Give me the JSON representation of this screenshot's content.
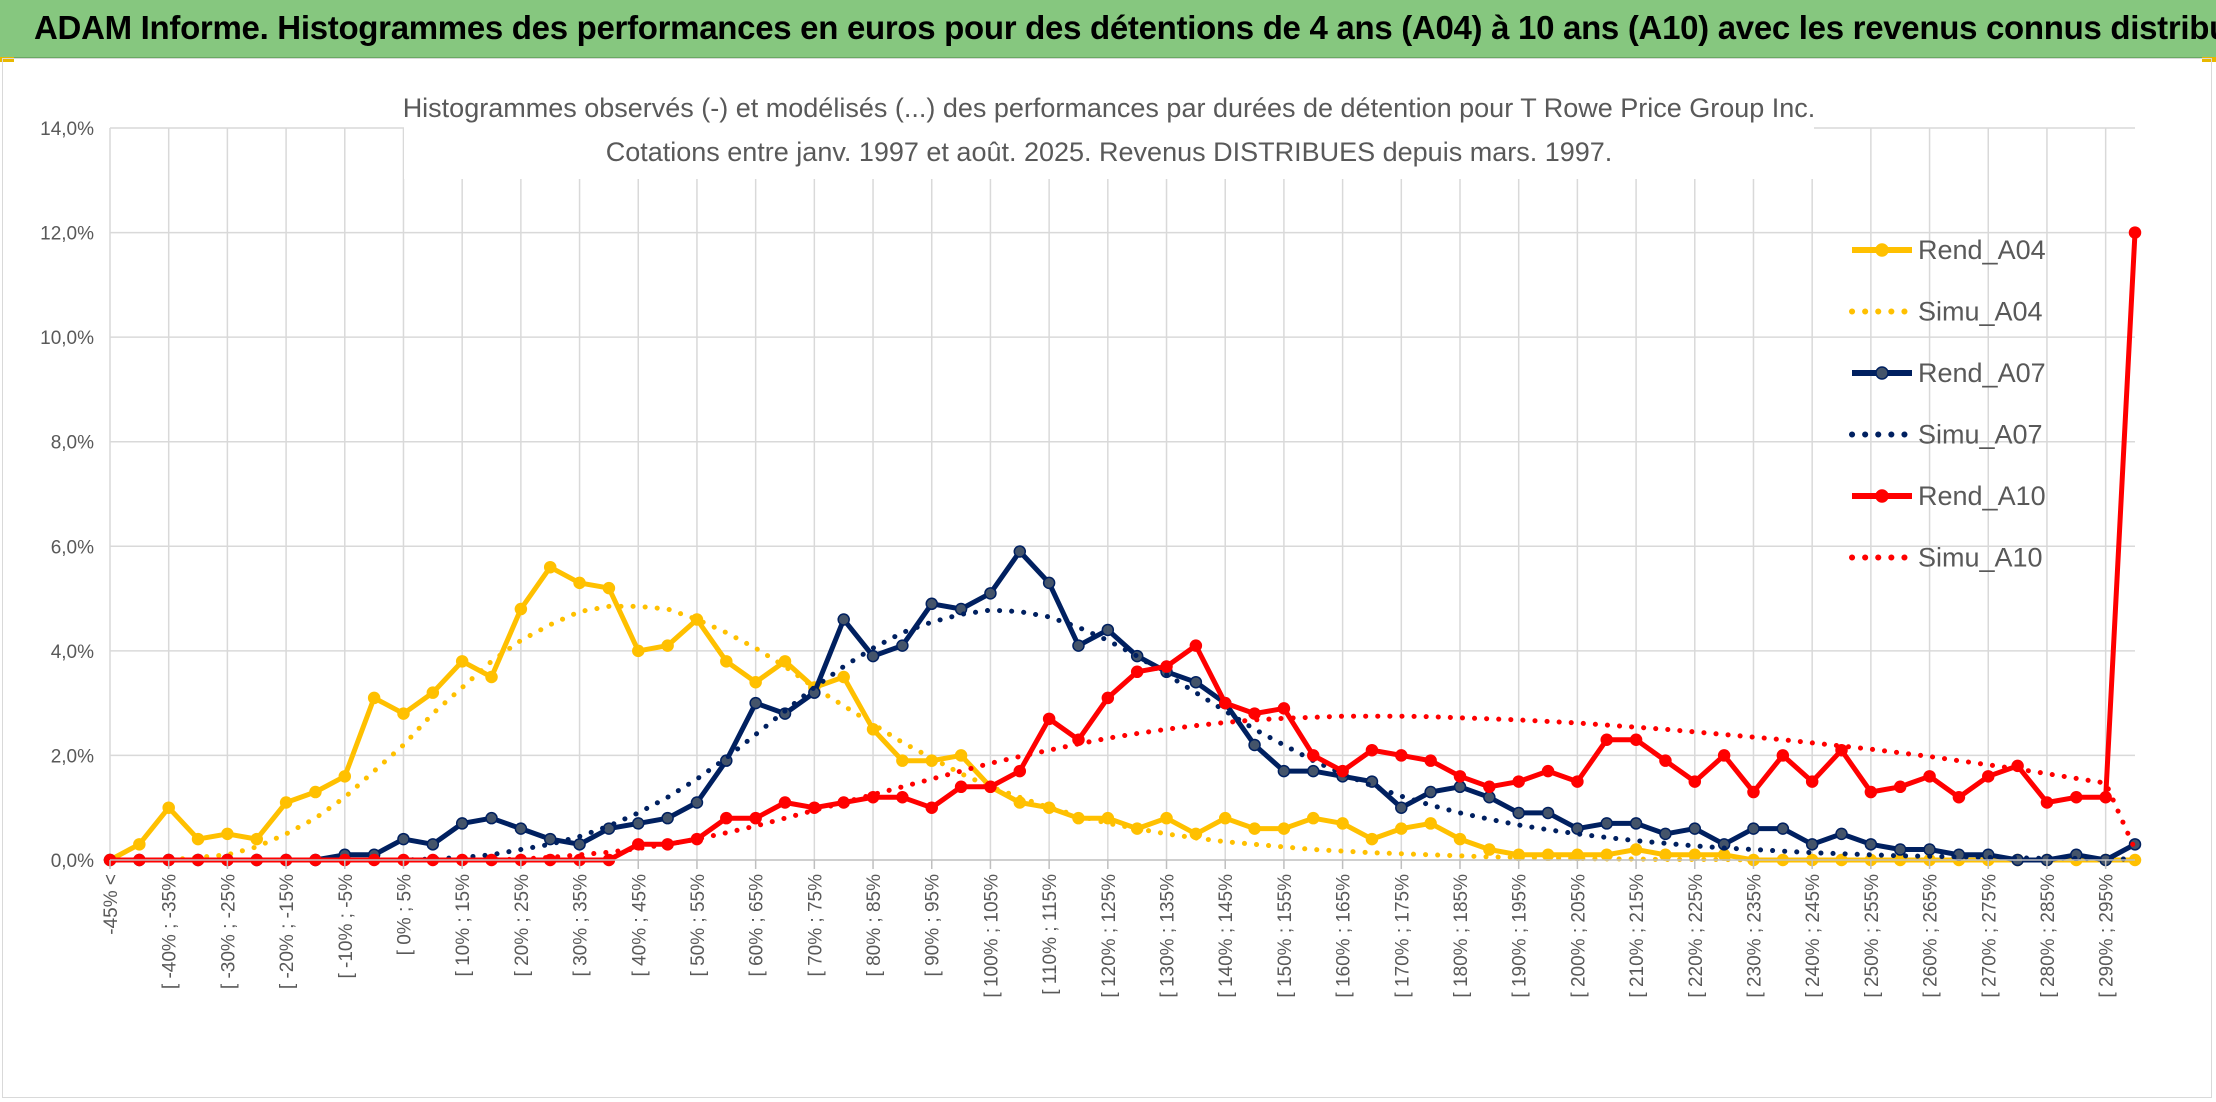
{
  "banner": {
    "title": "ADAM Informe. Histogrammes des performances en euros pour des détentions de 4 ans (A04) à 10 ans (A10) avec les revenus connus distribués",
    "color": "#86c77f"
  },
  "chart_data": {
    "type": "line",
    "title_lines": [
      "Histogrammes observés (-) et modélisés (...) des performances par durées de détention pour T Rowe Price Group Inc.",
      "Cotations entre janv. 1997 et août. 2025. Revenus DISTRIBUES depuis mars. 1997."
    ],
    "xlabel": "",
    "ylabel": "",
    "ylim": [
      0,
      14
    ],
    "y_ticks": [
      "0,0%",
      "2,0%",
      "4,0%",
      "6,0%",
      "8,0%",
      "10,0%",
      "12,0%",
      "14,0%"
    ],
    "grid": true,
    "legend_position": "right",
    "x_labels": [
      "-45% <",
      "[ -40% ; -35%",
      "[ -30% ; -25%",
      "[ -20% ; -15%",
      "[ -10% ; -5%",
      "[ 0% ; 5%",
      "[ 10% ; 15%",
      "[ 20% ; 25%",
      "[ 30% ; 35%",
      "[ 40% ; 45%",
      "[ 50% ; 55%",
      "[ 60% ; 65%",
      "[ 70% ; 75%",
      "[ 80% ; 85%",
      "[ 90% ; 95%",
      "[ 100% ; 105%",
      "[ 110% ; 115%",
      "[ 120% ; 125%",
      "[ 130% ; 135%",
      "[ 140% ; 145%",
      "[ 150% ; 155%",
      "[ 160% ; 165%",
      "[ 170% ; 175%",
      "[ 180% ; 185%",
      "[ 190% ; 195%",
      "[ 200% ; 205%",
      "[ 210% ; 215%",
      "[ 220% ; 225%",
      "[ 230% ; 235%",
      "[ 240% ; 245%",
      "[ 250% ; 255%",
      "[ 260% ; 265%",
      "[ 270% ; 275%",
      "[ 280% ; 285%",
      "[ 290% ; 295%"
    ],
    "series": [
      {
        "name": "Rend_A04",
        "style": "solid",
        "color": "#ffc000",
        "values": [
          0,
          0.3,
          1.0,
          0.4,
          0.5,
          0.4,
          1.1,
          1.3,
          1.6,
          3.1,
          2.8,
          3.2,
          3.8,
          3.5,
          4.8,
          5.6,
          5.3,
          5.2,
          4.0,
          4.1,
          4.6,
          3.8,
          3.4,
          3.8,
          3.3,
          3.5,
          2.5,
          1.9,
          1.9,
          2.0,
          1.4,
          1.1,
          1.0,
          0.8,
          0.8,
          0.6,
          0.8,
          0.5,
          0.8,
          0.6,
          0.6,
          0.8,
          0.7,
          0.4,
          0.6,
          0.7,
          0.4,
          0.2,
          0.1,
          0.1,
          0.1,
          0.1,
          0.2,
          0.1,
          0.1,
          0.1,
          0.0,
          0.0,
          0.0,
          0.0,
          0.0,
          0.0,
          0.0,
          0.0,
          0.0,
          0.0,
          0.0,
          0.0,
          0.0,
          0.0
        ]
      },
      {
        "name": "Simu_A04",
        "style": "dotted",
        "color": "#ffc000",
        "values": [
          0,
          0,
          0,
          0.05,
          0.1,
          0.25,
          0.5,
          0.8,
          1.2,
          1.7,
          2.2,
          2.8,
          3.3,
          3.8,
          4.2,
          4.5,
          4.75,
          4.85,
          4.85,
          4.8,
          4.6,
          4.35,
          4.05,
          3.7,
          3.3,
          2.95,
          2.6,
          2.25,
          1.95,
          1.65,
          1.4,
          1.2,
          1.0,
          0.85,
          0.7,
          0.6,
          0.5,
          0.42,
          0.35,
          0.3,
          0.25,
          0.2,
          0.17,
          0.14,
          0.12,
          0.1,
          0.08,
          0.06,
          0.05,
          0.04,
          0.03,
          0.02,
          0.02,
          0.01,
          0.01,
          0.01,
          0,
          0,
          0,
          0,
          0,
          0,
          0,
          0,
          0,
          0,
          0,
          0,
          0,
          0
        ]
      },
      {
        "name": "Rend_A07",
        "style": "solid",
        "color": "#002060",
        "values": [
          0,
          0,
          0,
          0,
          0,
          0,
          0,
          0,
          0.1,
          0.1,
          0.4,
          0.3,
          0.7,
          0.8,
          0.6,
          0.4,
          0.3,
          0.6,
          0.7,
          0.8,
          1.1,
          1.9,
          3.0,
          2.8,
          3.2,
          4.6,
          3.9,
          4.1,
          4.9,
          4.8,
          5.1,
          5.9,
          5.3,
          4.1,
          4.4,
          3.9,
          3.6,
          3.4,
          3.0,
          2.2,
          1.7,
          1.7,
          1.6,
          1.5,
          1.0,
          1.3,
          1.4,
          1.2,
          0.9,
          0.9,
          0.6,
          0.7,
          0.7,
          0.5,
          0.6,
          0.3,
          0.6,
          0.6,
          0.3,
          0.5,
          0.3,
          0.2,
          0.2,
          0.1,
          0.1,
          0.0,
          0.0,
          0.1,
          0.0,
          0.3
        ]
      },
      {
        "name": "Simu_A07",
        "style": "dotted",
        "color": "#002060",
        "values": [
          0,
          0,
          0,
          0,
          0,
          0,
          0,
          0,
          0,
          0,
          0,
          0.02,
          0.05,
          0.1,
          0.2,
          0.3,
          0.45,
          0.65,
          0.9,
          1.2,
          1.55,
          1.95,
          2.4,
          2.85,
          3.3,
          3.7,
          4.05,
          4.35,
          4.55,
          4.7,
          4.78,
          4.75,
          4.65,
          4.45,
          4.2,
          3.9,
          3.55,
          3.2,
          2.85,
          2.5,
          2.2,
          1.9,
          1.65,
          1.42,
          1.22,
          1.05,
          0.9,
          0.78,
          0.67,
          0.58,
          0.5,
          0.43,
          0.37,
          0.32,
          0.27,
          0.23,
          0.2,
          0.17,
          0.14,
          0.12,
          0.1,
          0.08,
          0.07,
          0.06,
          0.05,
          0.04,
          0.03,
          0.03,
          0.02,
          0.02
        ]
      },
      {
        "name": "Rend_A10",
        "style": "solid",
        "color": "#ff0000",
        "values": [
          0,
          0,
          0,
          0,
          0,
          0,
          0,
          0,
          0,
          0,
          0,
          0,
          0,
          0,
          0,
          0,
          0,
          0,
          0.3,
          0.3,
          0.4,
          0.8,
          0.8,
          1.1,
          1.0,
          1.1,
          1.2,
          1.2,
          1.0,
          1.4,
          1.4,
          1.7,
          2.7,
          2.3,
          3.1,
          3.6,
          3.7,
          4.1,
          3.0,
          2.8,
          2.9,
          2.0,
          1.7,
          2.1,
          2.0,
          1.9,
          1.6,
          1.4,
          1.5,
          1.7,
          1.5,
          2.3,
          2.3,
          1.9,
          1.5,
          2.0,
          1.3,
          2.0,
          1.5,
          2.1,
          1.3,
          1.4,
          1.6,
          1.2,
          1.6,
          1.8,
          1.1,
          1.2,
          1.2,
          12.0
        ]
      },
      {
        "name": "Simu_A10",
        "style": "dotted",
        "color": "#ff0000",
        "values": [
          0,
          0,
          0,
          0,
          0,
          0,
          0,
          0,
          0,
          0,
          0,
          0,
          0,
          0,
          0.02,
          0.05,
          0.1,
          0.15,
          0.22,
          0.3,
          0.4,
          0.52,
          0.65,
          0.8,
          0.95,
          1.1,
          1.25,
          1.4,
          1.55,
          1.7,
          1.85,
          1.98,
          2.1,
          2.22,
          2.33,
          2.42,
          2.5,
          2.57,
          2.63,
          2.68,
          2.71,
          2.73,
          2.75,
          2.75,
          2.75,
          2.74,
          2.72,
          2.7,
          2.68,
          2.65,
          2.62,
          2.58,
          2.54,
          2.5,
          2.45,
          2.4,
          2.35,
          2.3,
          2.24,
          2.18,
          2.12,
          2.05,
          1.98,
          1.9,
          1.82,
          1.74,
          1.65,
          1.56,
          1.47,
          0.2
        ]
      }
    ]
  }
}
